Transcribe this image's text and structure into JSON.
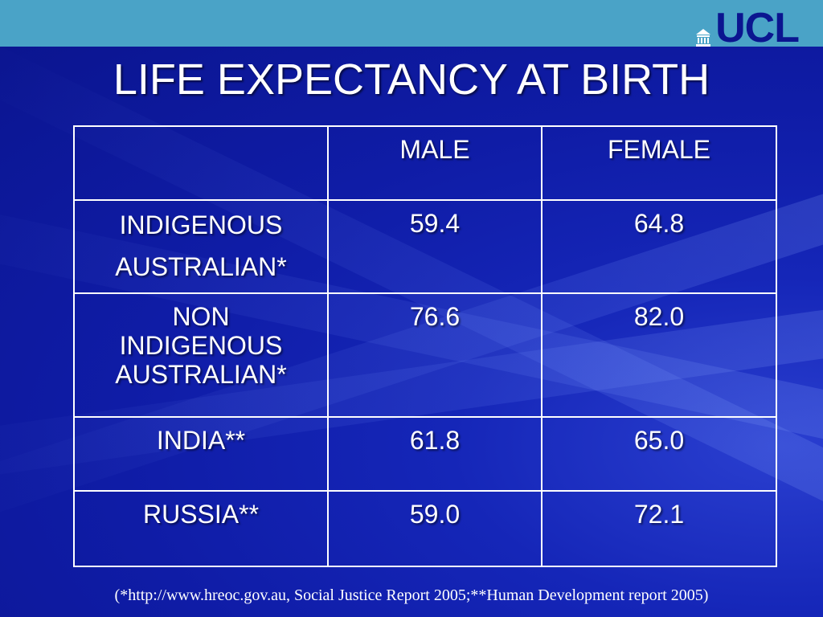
{
  "logo": {
    "text": "UCL",
    "icon": "ucl-portico-icon"
  },
  "title": "LIFE EXPECTANCY AT BIRTH",
  "table": {
    "headers": [
      "",
      "MALE",
      "FEMALE"
    ],
    "rows": [
      {
        "label": [
          "INDIGENOUS",
          "AUSTRALIAN*"
        ],
        "male": "59.4",
        "female": "64.8"
      },
      {
        "label": [
          "NON",
          "INDIGENOUS",
          "AUSTRALIAN*"
        ],
        "male": "76.6",
        "female": "82.0"
      },
      {
        "label": [
          "INDIA**"
        ],
        "male": "61.8",
        "female": "65.0"
      },
      {
        "label": [
          "RUSSIA**"
        ],
        "male": "59.0",
        "female": "72.1"
      }
    ]
  },
  "footnote": "(*http://www.hreoc.gov.au, Social Justice Report 2005;**Human Development report 2005)",
  "colors": {
    "background": "#0e1a9e",
    "top_band": "#4aa3c7",
    "text": "#ffffff",
    "logo": "#0b1590"
  }
}
